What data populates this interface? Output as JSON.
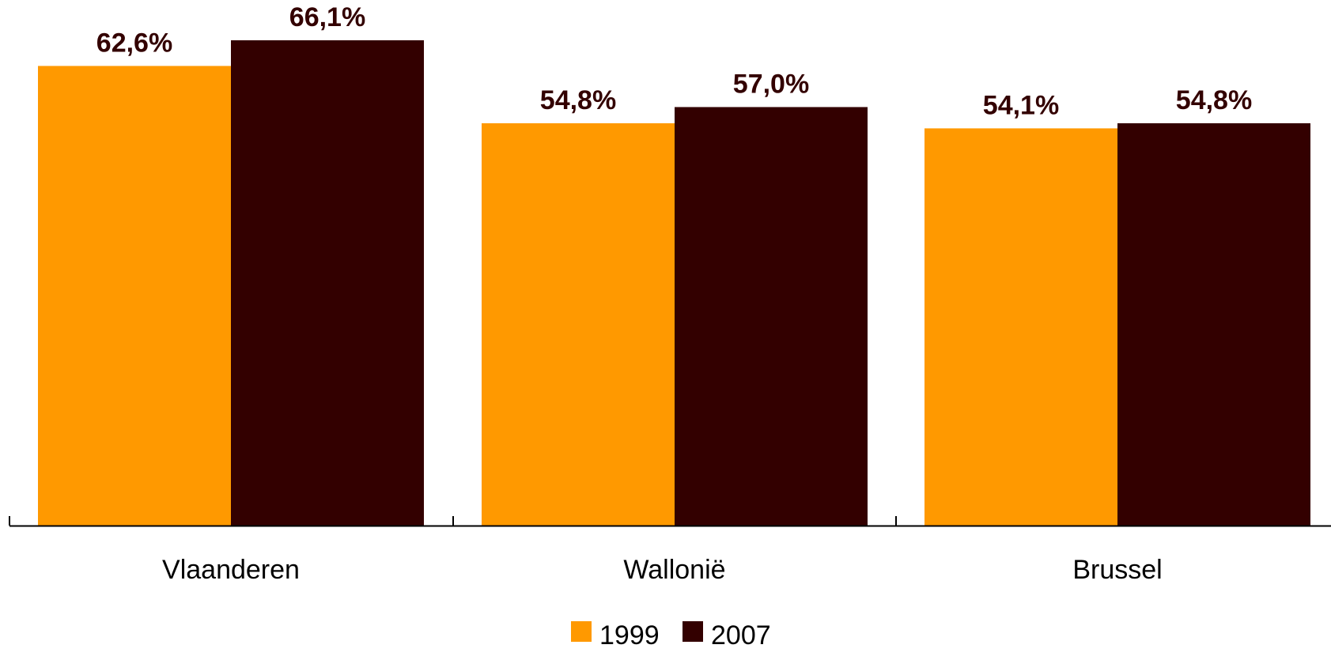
{
  "chart_data": {
    "type": "bar",
    "categories": [
      "Vlaanderen",
      "Wallonië",
      "Brussel"
    ],
    "series": [
      {
        "name": "1999",
        "color": "#FF9900",
        "values": [
          62.6,
          54.8,
          54.1
        ],
        "labels": [
          "62,6%",
          "54,8%",
          "54,1%"
        ]
      },
      {
        "name": "2007",
        "color": "#330000",
        "values": [
          66.1,
          57.0,
          54.8
        ],
        "labels": [
          "66,1%",
          "57,0%",
          "54,8%"
        ]
      }
    ],
    "title": "",
    "xlabel": "",
    "ylabel": "",
    "ylim": [
      0,
      70
    ],
    "grid": false,
    "legend_position": "bottom-center",
    "axis_color": "#000000"
  }
}
